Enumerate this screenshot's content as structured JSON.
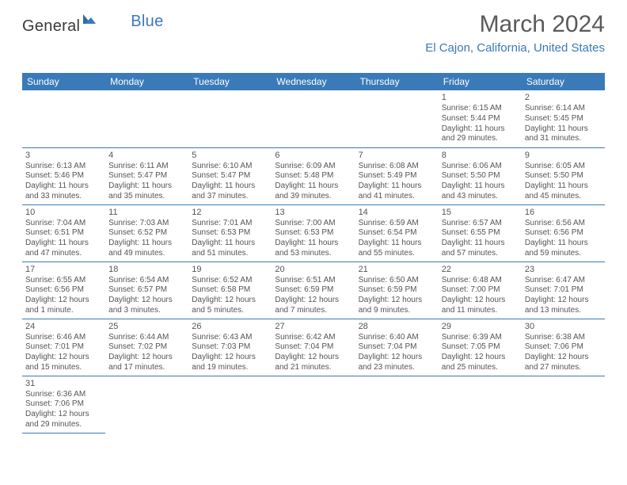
{
  "brand": {
    "part1": "General",
    "part2": "Blue"
  },
  "title": "March 2024",
  "location": "El Cajon, California, United States",
  "header_bg": "#3a7ab8",
  "header_fg": "#ffffff",
  "rule_color": "#3a7ab8",
  "text_color": "#555555",
  "weekdays": [
    "Sunday",
    "Monday",
    "Tuesday",
    "Wednesday",
    "Thursday",
    "Friday",
    "Saturday"
  ],
  "weeks": [
    [
      null,
      null,
      null,
      null,
      null,
      {
        "n": "1",
        "sr": "Sunrise: 6:15 AM",
        "ss": "Sunset: 5:44 PM",
        "d1": "Daylight: 11 hours",
        "d2": "and 29 minutes."
      },
      {
        "n": "2",
        "sr": "Sunrise: 6:14 AM",
        "ss": "Sunset: 5:45 PM",
        "d1": "Daylight: 11 hours",
        "d2": "and 31 minutes."
      }
    ],
    [
      {
        "n": "3",
        "sr": "Sunrise: 6:13 AM",
        "ss": "Sunset: 5:46 PM",
        "d1": "Daylight: 11 hours",
        "d2": "and 33 minutes."
      },
      {
        "n": "4",
        "sr": "Sunrise: 6:11 AM",
        "ss": "Sunset: 5:47 PM",
        "d1": "Daylight: 11 hours",
        "d2": "and 35 minutes."
      },
      {
        "n": "5",
        "sr": "Sunrise: 6:10 AM",
        "ss": "Sunset: 5:47 PM",
        "d1": "Daylight: 11 hours",
        "d2": "and 37 minutes."
      },
      {
        "n": "6",
        "sr": "Sunrise: 6:09 AM",
        "ss": "Sunset: 5:48 PM",
        "d1": "Daylight: 11 hours",
        "d2": "and 39 minutes."
      },
      {
        "n": "7",
        "sr": "Sunrise: 6:08 AM",
        "ss": "Sunset: 5:49 PM",
        "d1": "Daylight: 11 hours",
        "d2": "and 41 minutes."
      },
      {
        "n": "8",
        "sr": "Sunrise: 6:06 AM",
        "ss": "Sunset: 5:50 PM",
        "d1": "Daylight: 11 hours",
        "d2": "and 43 minutes."
      },
      {
        "n": "9",
        "sr": "Sunrise: 6:05 AM",
        "ss": "Sunset: 5:50 PM",
        "d1": "Daylight: 11 hours",
        "d2": "and 45 minutes."
      }
    ],
    [
      {
        "n": "10",
        "sr": "Sunrise: 7:04 AM",
        "ss": "Sunset: 6:51 PM",
        "d1": "Daylight: 11 hours",
        "d2": "and 47 minutes."
      },
      {
        "n": "11",
        "sr": "Sunrise: 7:03 AM",
        "ss": "Sunset: 6:52 PM",
        "d1": "Daylight: 11 hours",
        "d2": "and 49 minutes."
      },
      {
        "n": "12",
        "sr": "Sunrise: 7:01 AM",
        "ss": "Sunset: 6:53 PM",
        "d1": "Daylight: 11 hours",
        "d2": "and 51 minutes."
      },
      {
        "n": "13",
        "sr": "Sunrise: 7:00 AM",
        "ss": "Sunset: 6:53 PM",
        "d1": "Daylight: 11 hours",
        "d2": "and 53 minutes."
      },
      {
        "n": "14",
        "sr": "Sunrise: 6:59 AM",
        "ss": "Sunset: 6:54 PM",
        "d1": "Daylight: 11 hours",
        "d2": "and 55 minutes."
      },
      {
        "n": "15",
        "sr": "Sunrise: 6:57 AM",
        "ss": "Sunset: 6:55 PM",
        "d1": "Daylight: 11 hours",
        "d2": "and 57 minutes."
      },
      {
        "n": "16",
        "sr": "Sunrise: 6:56 AM",
        "ss": "Sunset: 6:56 PM",
        "d1": "Daylight: 11 hours",
        "d2": "and 59 minutes."
      }
    ],
    [
      {
        "n": "17",
        "sr": "Sunrise: 6:55 AM",
        "ss": "Sunset: 6:56 PM",
        "d1": "Daylight: 12 hours",
        "d2": "and 1 minute."
      },
      {
        "n": "18",
        "sr": "Sunrise: 6:54 AM",
        "ss": "Sunset: 6:57 PM",
        "d1": "Daylight: 12 hours",
        "d2": "and 3 minutes."
      },
      {
        "n": "19",
        "sr": "Sunrise: 6:52 AM",
        "ss": "Sunset: 6:58 PM",
        "d1": "Daylight: 12 hours",
        "d2": "and 5 minutes."
      },
      {
        "n": "20",
        "sr": "Sunrise: 6:51 AM",
        "ss": "Sunset: 6:59 PM",
        "d1": "Daylight: 12 hours",
        "d2": "and 7 minutes."
      },
      {
        "n": "21",
        "sr": "Sunrise: 6:50 AM",
        "ss": "Sunset: 6:59 PM",
        "d1": "Daylight: 12 hours",
        "d2": "and 9 minutes."
      },
      {
        "n": "22",
        "sr": "Sunrise: 6:48 AM",
        "ss": "Sunset: 7:00 PM",
        "d1": "Daylight: 12 hours",
        "d2": "and 11 minutes."
      },
      {
        "n": "23",
        "sr": "Sunrise: 6:47 AM",
        "ss": "Sunset: 7:01 PM",
        "d1": "Daylight: 12 hours",
        "d2": "and 13 minutes."
      }
    ],
    [
      {
        "n": "24",
        "sr": "Sunrise: 6:46 AM",
        "ss": "Sunset: 7:01 PM",
        "d1": "Daylight: 12 hours",
        "d2": "and 15 minutes."
      },
      {
        "n": "25",
        "sr": "Sunrise: 6:44 AM",
        "ss": "Sunset: 7:02 PM",
        "d1": "Daylight: 12 hours",
        "d2": "and 17 minutes."
      },
      {
        "n": "26",
        "sr": "Sunrise: 6:43 AM",
        "ss": "Sunset: 7:03 PM",
        "d1": "Daylight: 12 hours",
        "d2": "and 19 minutes."
      },
      {
        "n": "27",
        "sr": "Sunrise: 6:42 AM",
        "ss": "Sunset: 7:04 PM",
        "d1": "Daylight: 12 hours",
        "d2": "and 21 minutes."
      },
      {
        "n": "28",
        "sr": "Sunrise: 6:40 AM",
        "ss": "Sunset: 7:04 PM",
        "d1": "Daylight: 12 hours",
        "d2": "and 23 minutes."
      },
      {
        "n": "29",
        "sr": "Sunrise: 6:39 AM",
        "ss": "Sunset: 7:05 PM",
        "d1": "Daylight: 12 hours",
        "d2": "and 25 minutes."
      },
      {
        "n": "30",
        "sr": "Sunrise: 6:38 AM",
        "ss": "Sunset: 7:06 PM",
        "d1": "Daylight: 12 hours",
        "d2": "and 27 minutes."
      }
    ],
    [
      {
        "n": "31",
        "sr": "Sunrise: 6:36 AM",
        "ss": "Sunset: 7:06 PM",
        "d1": "Daylight: 12 hours",
        "d2": "and 29 minutes."
      },
      null,
      null,
      null,
      null,
      null,
      null
    ]
  ]
}
